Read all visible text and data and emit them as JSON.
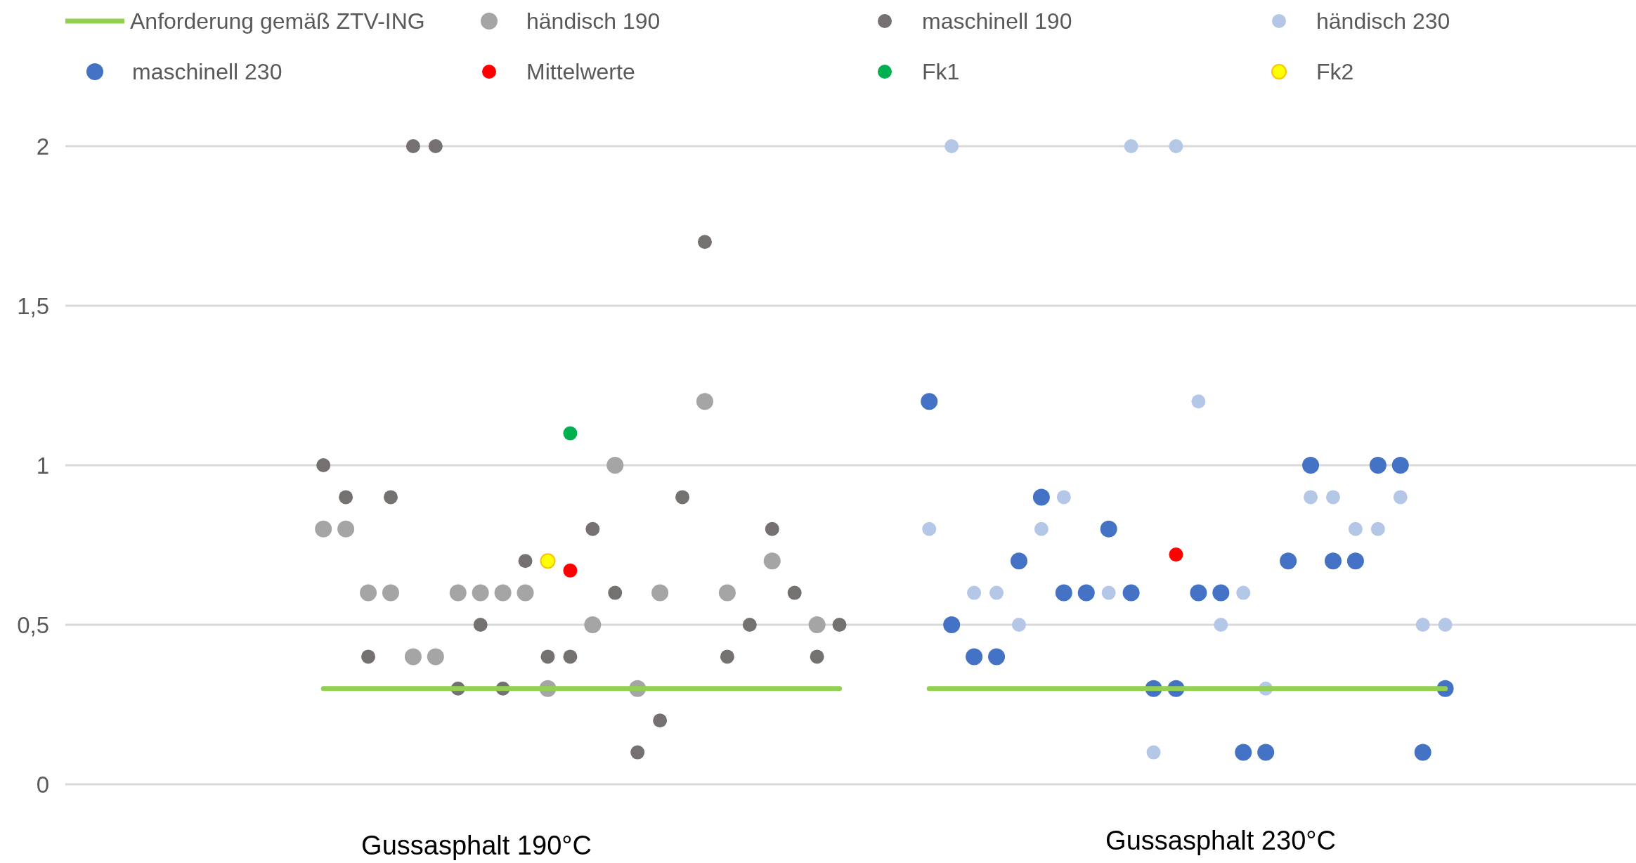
{
  "chart_data": {
    "type": "scatter",
    "categories": [
      null,
      null,
      null,
      null,
      null,
      null,
      null,
      null,
      null,
      null,
      null,
      null,
      null,
      null,
      null,
      null,
      null,
      null,
      null,
      null,
      null,
      null,
      null,
      null,
      null,
      null,
      null,
      null,
      null,
      null,
      null,
      null,
      null,
      null,
      null,
      null,
      null,
      null,
      null,
      null,
      null,
      null,
      null,
      null,
      null,
      null,
      null,
      null,
      null,
      null,
      null,
      null,
      null,
      null,
      null,
      null,
      null,
      null,
      null,
      null,
      null,
      null,
      null,
      null,
      null,
      null,
      null,
      null,
      null,
      null
    ],
    "annotations": [
      "Gussasphalt 190°C",
      "Gussasphalt 230°C"
    ],
    "ylim": [
      0,
      2
    ],
    "yticks": [
      0,
      {
        "value": 0.5,
        "label": "0,5"
      },
      1,
      {
        "value": 1.5,
        "label": "1,5"
      },
      2
    ],
    "grid": "y",
    "legend": "top",
    "marker": "circle",
    "series": [
      {
        "name": "Anforderung gemäß ZTV-ING",
        "type": "line",
        "marker": "none",
        "color": "#92d050",
        "values": [
          null,
          null,
          null,
          null,
          null,
          null,
          null,
          null,
          null,
          null,
          null,
          0.3,
          0.3,
          0.3,
          0.3,
          0.3,
          0.3,
          0.3,
          0.3,
          0.3,
          0.3,
          0.3,
          0.3,
          0.3,
          0.3,
          0.3,
          0.3,
          0.3,
          0.3,
          0.3,
          0.3,
          0.3,
          0.3,
          0.3,
          0.3,
          null,
          null,
          null,
          0.3,
          0.3,
          0.3,
          0.3,
          0.3,
          0.3,
          0.3,
          0.3,
          0.3,
          0.3,
          0.3,
          0.3,
          0.3,
          0.3,
          0.3,
          0.3,
          0.3,
          0.3,
          0.3,
          0.3,
          0.3,
          0.3,
          0.3,
          0.3,
          null,
          null,
          null,
          null,
          null,
          null,
          null,
          null
        ]
      },
      {
        "name": "händisch 190",
        "color": "#a5a5a5",
        "values": [
          null,
          null,
          null,
          null,
          null,
          null,
          null,
          null,
          null,
          null,
          null,
          0.8,
          0.8,
          0.6,
          0.6,
          0.4,
          0.4,
          0.6,
          0.6,
          0.6,
          0.6,
          0.3,
          null,
          0.5,
          1.0,
          0.3,
          0.6,
          null,
          1.2,
          0.6,
          null,
          0.7,
          null,
          0.5,
          null,
          null,
          null,
          null,
          null,
          null,
          null,
          null,
          null,
          null,
          null,
          null,
          null,
          null,
          null,
          null,
          null,
          null,
          null,
          null,
          null,
          null,
          null,
          null,
          null,
          null,
          null,
          null,
          null,
          null,
          null,
          null,
          null,
          null,
          null,
          null
        ]
      },
      {
        "name": "maschinell 190",
        "color": "#767171",
        "values": [
          null,
          null,
          null,
          null,
          null,
          null,
          null,
          null,
          null,
          null,
          null,
          1.0,
          0.9,
          0.4,
          0.9,
          2.0,
          2.0,
          0.3,
          0.5,
          0.3,
          0.7,
          0.4,
          0.4,
          0.8,
          0.6,
          0.1,
          0.2,
          0.9,
          1.7,
          0.4,
          0.5,
          0.8,
          0.6,
          0.4,
          0.5,
          null,
          null,
          null,
          null,
          null,
          null,
          null,
          null,
          null,
          null,
          null,
          null,
          null,
          null,
          null,
          null,
          null,
          null,
          null,
          null,
          null,
          null,
          null,
          null,
          null,
          null,
          null,
          null,
          null,
          null,
          null,
          null,
          null,
          null,
          null
        ]
      },
      {
        "name": "händisch 230",
        "color": "#b4c7e7",
        "values": [
          null,
          null,
          null,
          null,
          null,
          null,
          null,
          null,
          null,
          null,
          null,
          null,
          null,
          null,
          null,
          null,
          null,
          null,
          null,
          null,
          null,
          null,
          null,
          null,
          null,
          null,
          null,
          null,
          null,
          null,
          null,
          null,
          null,
          null,
          null,
          null,
          null,
          null,
          0.8,
          2.0,
          0.6,
          0.6,
          0.5,
          0.8,
          0.9,
          null,
          0.6,
          2.0,
          0.1,
          2.0,
          1.2,
          0.5,
          0.6,
          0.3,
          null,
          0.9,
          0.9,
          0.8,
          0.8,
          0.9,
          0.5,
          0.5,
          null,
          null,
          null,
          null,
          null,
          null,
          null,
          null
        ]
      },
      {
        "name": "maschinell 230",
        "color": "#4472c4",
        "values": [
          null,
          null,
          null,
          null,
          null,
          null,
          null,
          null,
          null,
          null,
          null,
          null,
          null,
          null,
          null,
          null,
          null,
          null,
          null,
          null,
          null,
          null,
          null,
          null,
          null,
          null,
          null,
          null,
          null,
          null,
          null,
          null,
          null,
          null,
          null,
          null,
          null,
          null,
          1.2,
          0.5,
          0.4,
          0.4,
          0.7,
          0.9,
          0.6,
          0.6,
          0.8,
          0.6,
          0.3,
          0.3,
          0.6,
          0.6,
          0.1,
          0.1,
          0.7,
          1.0,
          0.7,
          0.7,
          1.0,
          1.0,
          0.1,
          0.3,
          null,
          null,
          null,
          null,
          null,
          null,
          null,
          null
        ]
      },
      {
        "name": "Mittelwerte",
        "color": "#ff0000",
        "values": [
          null,
          null,
          null,
          null,
          null,
          null,
          null,
          null,
          null,
          null,
          null,
          null,
          null,
          null,
          null,
          null,
          null,
          null,
          null,
          null,
          null,
          null,
          0.67,
          null,
          null,
          null,
          null,
          null,
          null,
          null,
          null,
          null,
          null,
          null,
          null,
          null,
          null,
          null,
          null,
          null,
          null,
          null,
          null,
          null,
          null,
          null,
          null,
          null,
          null,
          0.72,
          null,
          null,
          null,
          null,
          null,
          null,
          null,
          null,
          null,
          null,
          null,
          null,
          null,
          null,
          null,
          null,
          null,
          null,
          null,
          null
        ]
      },
      {
        "name": "Fk1",
        "color": "#00b050",
        "values": [
          null,
          null,
          null,
          null,
          null,
          null,
          null,
          null,
          null,
          null,
          null,
          null,
          null,
          null,
          null,
          null,
          null,
          null,
          null,
          null,
          null,
          null,
          1.1,
          null,
          null,
          null,
          null,
          null,
          null,
          null,
          null,
          null,
          null,
          null,
          null,
          null,
          null,
          null,
          null,
          null,
          null,
          null,
          null,
          null,
          null,
          null,
          null,
          null,
          null,
          null,
          null,
          null,
          null,
          null,
          null,
          null,
          null,
          null,
          null,
          null,
          null,
          null,
          null,
          null,
          null,
          null,
          null,
          null,
          null,
          null
        ]
      },
      {
        "name": "Fk2",
        "color": "#ffff00",
        "values": [
          null,
          null,
          null,
          null,
          null,
          null,
          null,
          null,
          null,
          null,
          null,
          null,
          null,
          null,
          null,
          null,
          null,
          null,
          null,
          null,
          null,
          0.7,
          null,
          null,
          null,
          null,
          null,
          null,
          null,
          null,
          null,
          null,
          null,
          null,
          null,
          null,
          null,
          null,
          null,
          null,
          null,
          null,
          null,
          null,
          null,
          null,
          null,
          null,
          null,
          null,
          null,
          null,
          null,
          null,
          null,
          null,
          null,
          null,
          null,
          null,
          null,
          null,
          null,
          null,
          null,
          null,
          null,
          null,
          null,
          null
        ]
      }
    ]
  }
}
